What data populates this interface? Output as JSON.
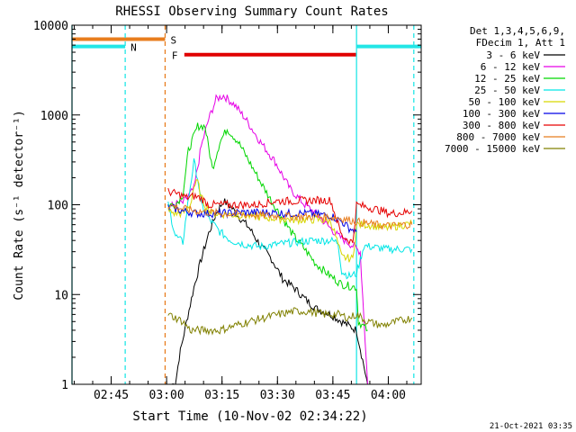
{
  "chart_data": {
    "type": "line",
    "title": "RHESSI Observing Summary Count Rates",
    "xlabel": "Start Time (10-Nov-02 02:34:22)",
    "ylabel": "Count Rate (s⁻¹ detector⁻¹)",
    "y_scale": "log",
    "ylim": [
      1,
      10000
    ],
    "x_unit": "minutes after 02:34:22",
    "xlim": [
      0,
      94.5
    ],
    "x_ticks": [
      {
        "t": 10.6,
        "label": "02:45"
      },
      {
        "t": 25.6,
        "label": "03:00"
      },
      {
        "t": 40.6,
        "label": "03:15"
      },
      {
        "t": 55.6,
        "label": "03:30"
      },
      {
        "t": 70.6,
        "label": "03:45"
      },
      {
        "t": 85.6,
        "label": "04:00"
      }
    ],
    "y_ticks": [
      {
        "v": 1,
        "label": "1"
      },
      {
        "v": 10,
        "label": "10"
      },
      {
        "v": 100,
        "label": "100"
      },
      {
        "v": 1000,
        "label": "1000"
      },
      {
        "v": 10000,
        "label": "10000"
      }
    ],
    "legend_header": [
      "Det 1,3,4,5,6,9,",
      "FDecim 1, Att 1"
    ],
    "legend_position": "right",
    "footer_date": "21-Oct-2021 03:35",
    "flags": [
      {
        "label": "S",
        "color": "#e87d1e",
        "segments": [
          [
            0,
            25.2
          ]
        ],
        "level": 7000
      },
      {
        "label": "N",
        "color": "#22e6e6",
        "segments": [
          [
            0,
            14.4
          ],
          [
            77,
            94.5
          ]
        ],
        "level": 5800
      },
      {
        "label": "F",
        "color": "#e00000",
        "segments": [
          [
            30.4,
            77
          ]
        ],
        "level": 4700
      }
    ],
    "markers": [
      {
        "color": "#22e6e6",
        "x": [
          0,
          14.4,
          77,
          92.5
        ]
      },
      {
        "color": "#e87d1e",
        "x": [
          25.2
        ]
      }
    ],
    "series": [
      {
        "name": "3 - 6 keV",
        "color": "#000000",
        "points": [
          [
            27,
            1
          ],
          [
            28,
            1
          ],
          [
            29,
            2
          ],
          [
            31,
            5
          ],
          [
            33,
            12
          ],
          [
            35,
            25
          ],
          [
            37,
            48
          ],
          [
            39,
            80
          ],
          [
            41,
            110
          ],
          [
            43,
            95
          ],
          [
            45,
            75
          ],
          [
            48,
            55
          ],
          [
            51,
            35
          ],
          [
            54,
            25
          ],
          [
            57,
            15
          ],
          [
            60,
            12
          ],
          [
            63,
            9
          ],
          [
            66,
            7
          ],
          [
            70,
            6
          ],
          [
            73,
            5
          ],
          [
            77,
            4
          ],
          [
            80,
            1
          ]
        ]
      },
      {
        "name": "6 - 12 keV",
        "color": "#e600e6",
        "points": [
          [
            27,
            100
          ],
          [
            30,
            105
          ],
          [
            33,
            150
          ],
          [
            35,
            450
          ],
          [
            37,
            900
          ],
          [
            39,
            1500
          ],
          [
            41,
            1650
          ],
          [
            44,
            1300
          ],
          [
            47,
            900
          ],
          [
            51,
            500
          ],
          [
            55,
            300
          ],
          [
            59,
            150
          ],
          [
            63,
            100
          ],
          [
            66,
            80
          ],
          [
            69,
            60
          ],
          [
            72,
            45
          ],
          [
            76,
            35
          ],
          [
            78,
            30
          ],
          [
            80,
            1
          ]
        ]
      },
      {
        "name": "12 - 25 keV",
        "color": "#00d600",
        "points": [
          [
            26,
            100
          ],
          [
            28,
            100
          ],
          [
            30,
            130
          ],
          [
            31.5,
            400
          ],
          [
            34,
            750
          ],
          [
            36,
            750
          ],
          [
            38,
            250
          ],
          [
            40,
            500
          ],
          [
            42,
            700
          ],
          [
            45,
            500
          ],
          [
            48,
            300
          ],
          [
            51,
            180
          ],
          [
            54,
            110
          ],
          [
            57,
            70
          ],
          [
            60,
            45
          ],
          [
            63,
            32
          ],
          [
            66,
            22
          ],
          [
            70,
            16
          ],
          [
            73,
            13
          ],
          [
            77,
            12
          ],
          [
            77.5,
            5
          ],
          [
            80,
            4
          ]
        ]
      },
      {
        "name": "25 - 50 keV",
        "color": "#00e6e6",
        "points": [
          [
            26,
            100
          ],
          [
            28,
            45
          ],
          [
            30,
            38
          ],
          [
            31,
            80
          ],
          [
            32,
            160
          ],
          [
            33,
            300
          ],
          [
            34,
            200
          ],
          [
            35,
            100
          ],
          [
            37,
            70
          ],
          [
            40,
            50
          ],
          [
            43,
            40
          ],
          [
            47,
            36
          ],
          [
            51,
            34
          ],
          [
            55,
            36
          ],
          [
            60,
            38
          ],
          [
            65,
            40
          ],
          [
            70,
            40
          ],
          [
            72,
            38
          ],
          [
            73,
            18
          ],
          [
            75,
            16
          ],
          [
            77,
            17
          ],
          [
            79,
            35
          ],
          [
            85,
            32
          ],
          [
            92,
            32
          ]
        ]
      },
      {
        "name": "50 - 100 keV",
        "color": "#d6d600",
        "points": [
          [
            26,
            85
          ],
          [
            28,
            80
          ],
          [
            30,
            80
          ],
          [
            32,
            100
          ],
          [
            33,
            160
          ],
          [
            34,
            180
          ],
          [
            35,
            120
          ],
          [
            36,
            100
          ],
          [
            38,
            80
          ],
          [
            42,
            78
          ],
          [
            46,
            76
          ],
          [
            52,
            72
          ],
          [
            60,
            68
          ],
          [
            66,
            68
          ],
          [
            70,
            66
          ],
          [
            71,
            50
          ],
          [
            73,
            26
          ],
          [
            76,
            25
          ],
          [
            77,
            60
          ],
          [
            80,
            60
          ],
          [
            85,
            55
          ],
          [
            88,
            58
          ],
          [
            92,
            62
          ]
        ]
      },
      {
        "name": "100 - 300 keV",
        "color": "#0000e6",
        "points": [
          [
            26,
            95
          ],
          [
            30,
            85
          ],
          [
            34,
            80
          ],
          [
            40,
            80
          ],
          [
            46,
            82
          ],
          [
            52,
            82
          ],
          [
            58,
            80
          ],
          [
            64,
            80
          ],
          [
            70,
            76
          ],
          [
            73,
            65
          ],
          [
            75,
            55
          ],
          [
            77,
            50
          ]
        ]
      },
      {
        "name": "300 - 800 keV",
        "color": "#e60000",
        "points": [
          [
            26,
            140
          ],
          [
            29,
            130
          ],
          [
            31,
            120
          ],
          [
            33,
            125
          ],
          [
            35,
            118
          ],
          [
            37,
            100
          ],
          [
            40,
            100
          ],
          [
            45,
            100
          ],
          [
            50,
            100
          ],
          [
            55,
            110
          ],
          [
            60,
            110
          ],
          [
            65,
            112
          ],
          [
            70,
            112
          ],
          [
            73,
            45
          ],
          [
            76,
            38
          ],
          [
            77,
            100
          ],
          [
            82,
            90
          ],
          [
            86,
            80
          ],
          [
            90,
            82
          ],
          [
            92,
            85
          ]
        ]
      },
      {
        "name": "800 - 7000 keV",
        "color": "#e87d1e",
        "points": [
          [
            26,
            100
          ],
          [
            30,
            90
          ],
          [
            34,
            85
          ],
          [
            40,
            80
          ],
          [
            46,
            78
          ],
          [
            52,
            76
          ],
          [
            60,
            74
          ],
          [
            66,
            74
          ],
          [
            72,
            72
          ],
          [
            77,
            65
          ],
          [
            82,
            60
          ],
          [
            86,
            58
          ],
          [
            90,
            60
          ],
          [
            92,
            60
          ]
        ]
      },
      {
        "name": "7000 - 15000 keV",
        "color": "#808000",
        "points": [
          [
            26,
            6
          ],
          [
            28,
            5.5
          ],
          [
            30,
            5
          ],
          [
            32,
            4
          ],
          [
            36,
            4
          ],
          [
            40,
            4
          ],
          [
            44,
            4.5
          ],
          [
            48,
            5
          ],
          [
            52,
            5.5
          ],
          [
            56,
            6
          ],
          [
            60,
            6.5
          ],
          [
            64,
            6.5
          ],
          [
            68,
            6
          ],
          [
            72,
            6
          ],
          [
            75,
            5.5
          ],
          [
            77,
            6
          ],
          [
            80,
            5
          ],
          [
            84,
            4.5
          ],
          [
            88,
            5
          ],
          [
            92,
            5.5
          ]
        ]
      }
    ]
  }
}
